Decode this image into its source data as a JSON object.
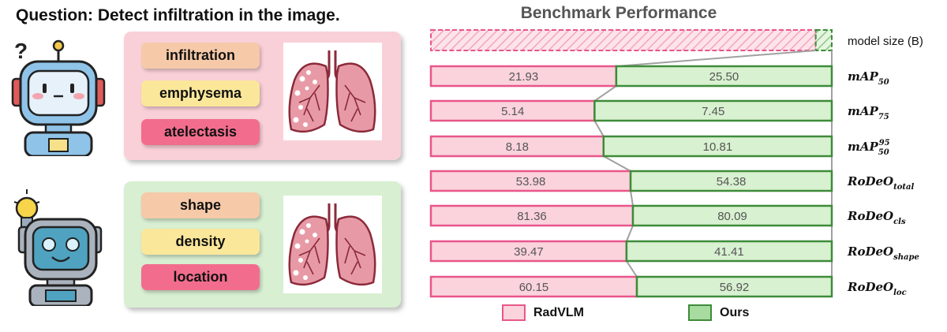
{
  "question": "Question: Detect infiltration in the image.",
  "panels": {
    "top_tags": [
      "infiltration",
      "emphysema",
      "atelectasis"
    ],
    "bottom_tags": [
      "shape",
      "density",
      "location"
    ],
    "robot_top_question_mark": "?"
  },
  "colors": {
    "radvlm_fill": "#fbd3dc",
    "radvlm_border": "#e8568a",
    "ours_fill": "#d8f1d0",
    "ours_border": "#3e8b3a",
    "pink_panel": "#fad0d8",
    "green_panel": "#d8efd2"
  },
  "chart_data": {
    "type": "bar",
    "orientation": "horizontal-stacked",
    "title": "Benchmark Performance",
    "size_row_label": "model size (B)",
    "categories": [
      {
        "base": "mAP",
        "sub": "50",
        "sup": ""
      },
      {
        "base": "mAP",
        "sub": "75",
        "sup": ""
      },
      {
        "base": "mAP",
        "sub": "50",
        "sup": "95"
      },
      {
        "base": "RoDeO",
        "sub": "total",
        "sup": ""
      },
      {
        "base": "RoDeO",
        "sub": "cls",
        "sup": ""
      },
      {
        "base": "RoDeO",
        "sub": "shape",
        "sup": ""
      },
      {
        "base": "RoDeO",
        "sub": "loc",
        "sup": ""
      }
    ],
    "series": [
      {
        "name": "RadVLM",
        "values": [
          21.93,
          5.14,
          8.18,
          53.98,
          81.36,
          39.47,
          60.15
        ],
        "labels": [
          "21.93",
          "5.14",
          "8.18",
          "53.98",
          "81.36",
          "39.47",
          "60.15"
        ]
      },
      {
        "name": "Ours",
        "values": [
          25.5,
          7.45,
          10.81,
          54.38,
          80.09,
          41.41,
          56.92
        ],
        "labels": [
          "25.50",
          "7.45",
          "10.81",
          "54.38",
          "80.09",
          "41.41",
          "56.92"
        ]
      }
    ],
    "model_size_fraction": {
      "RadVLM": 0.96,
      "Ours": 0.04
    },
    "legend_position": "bottom"
  }
}
